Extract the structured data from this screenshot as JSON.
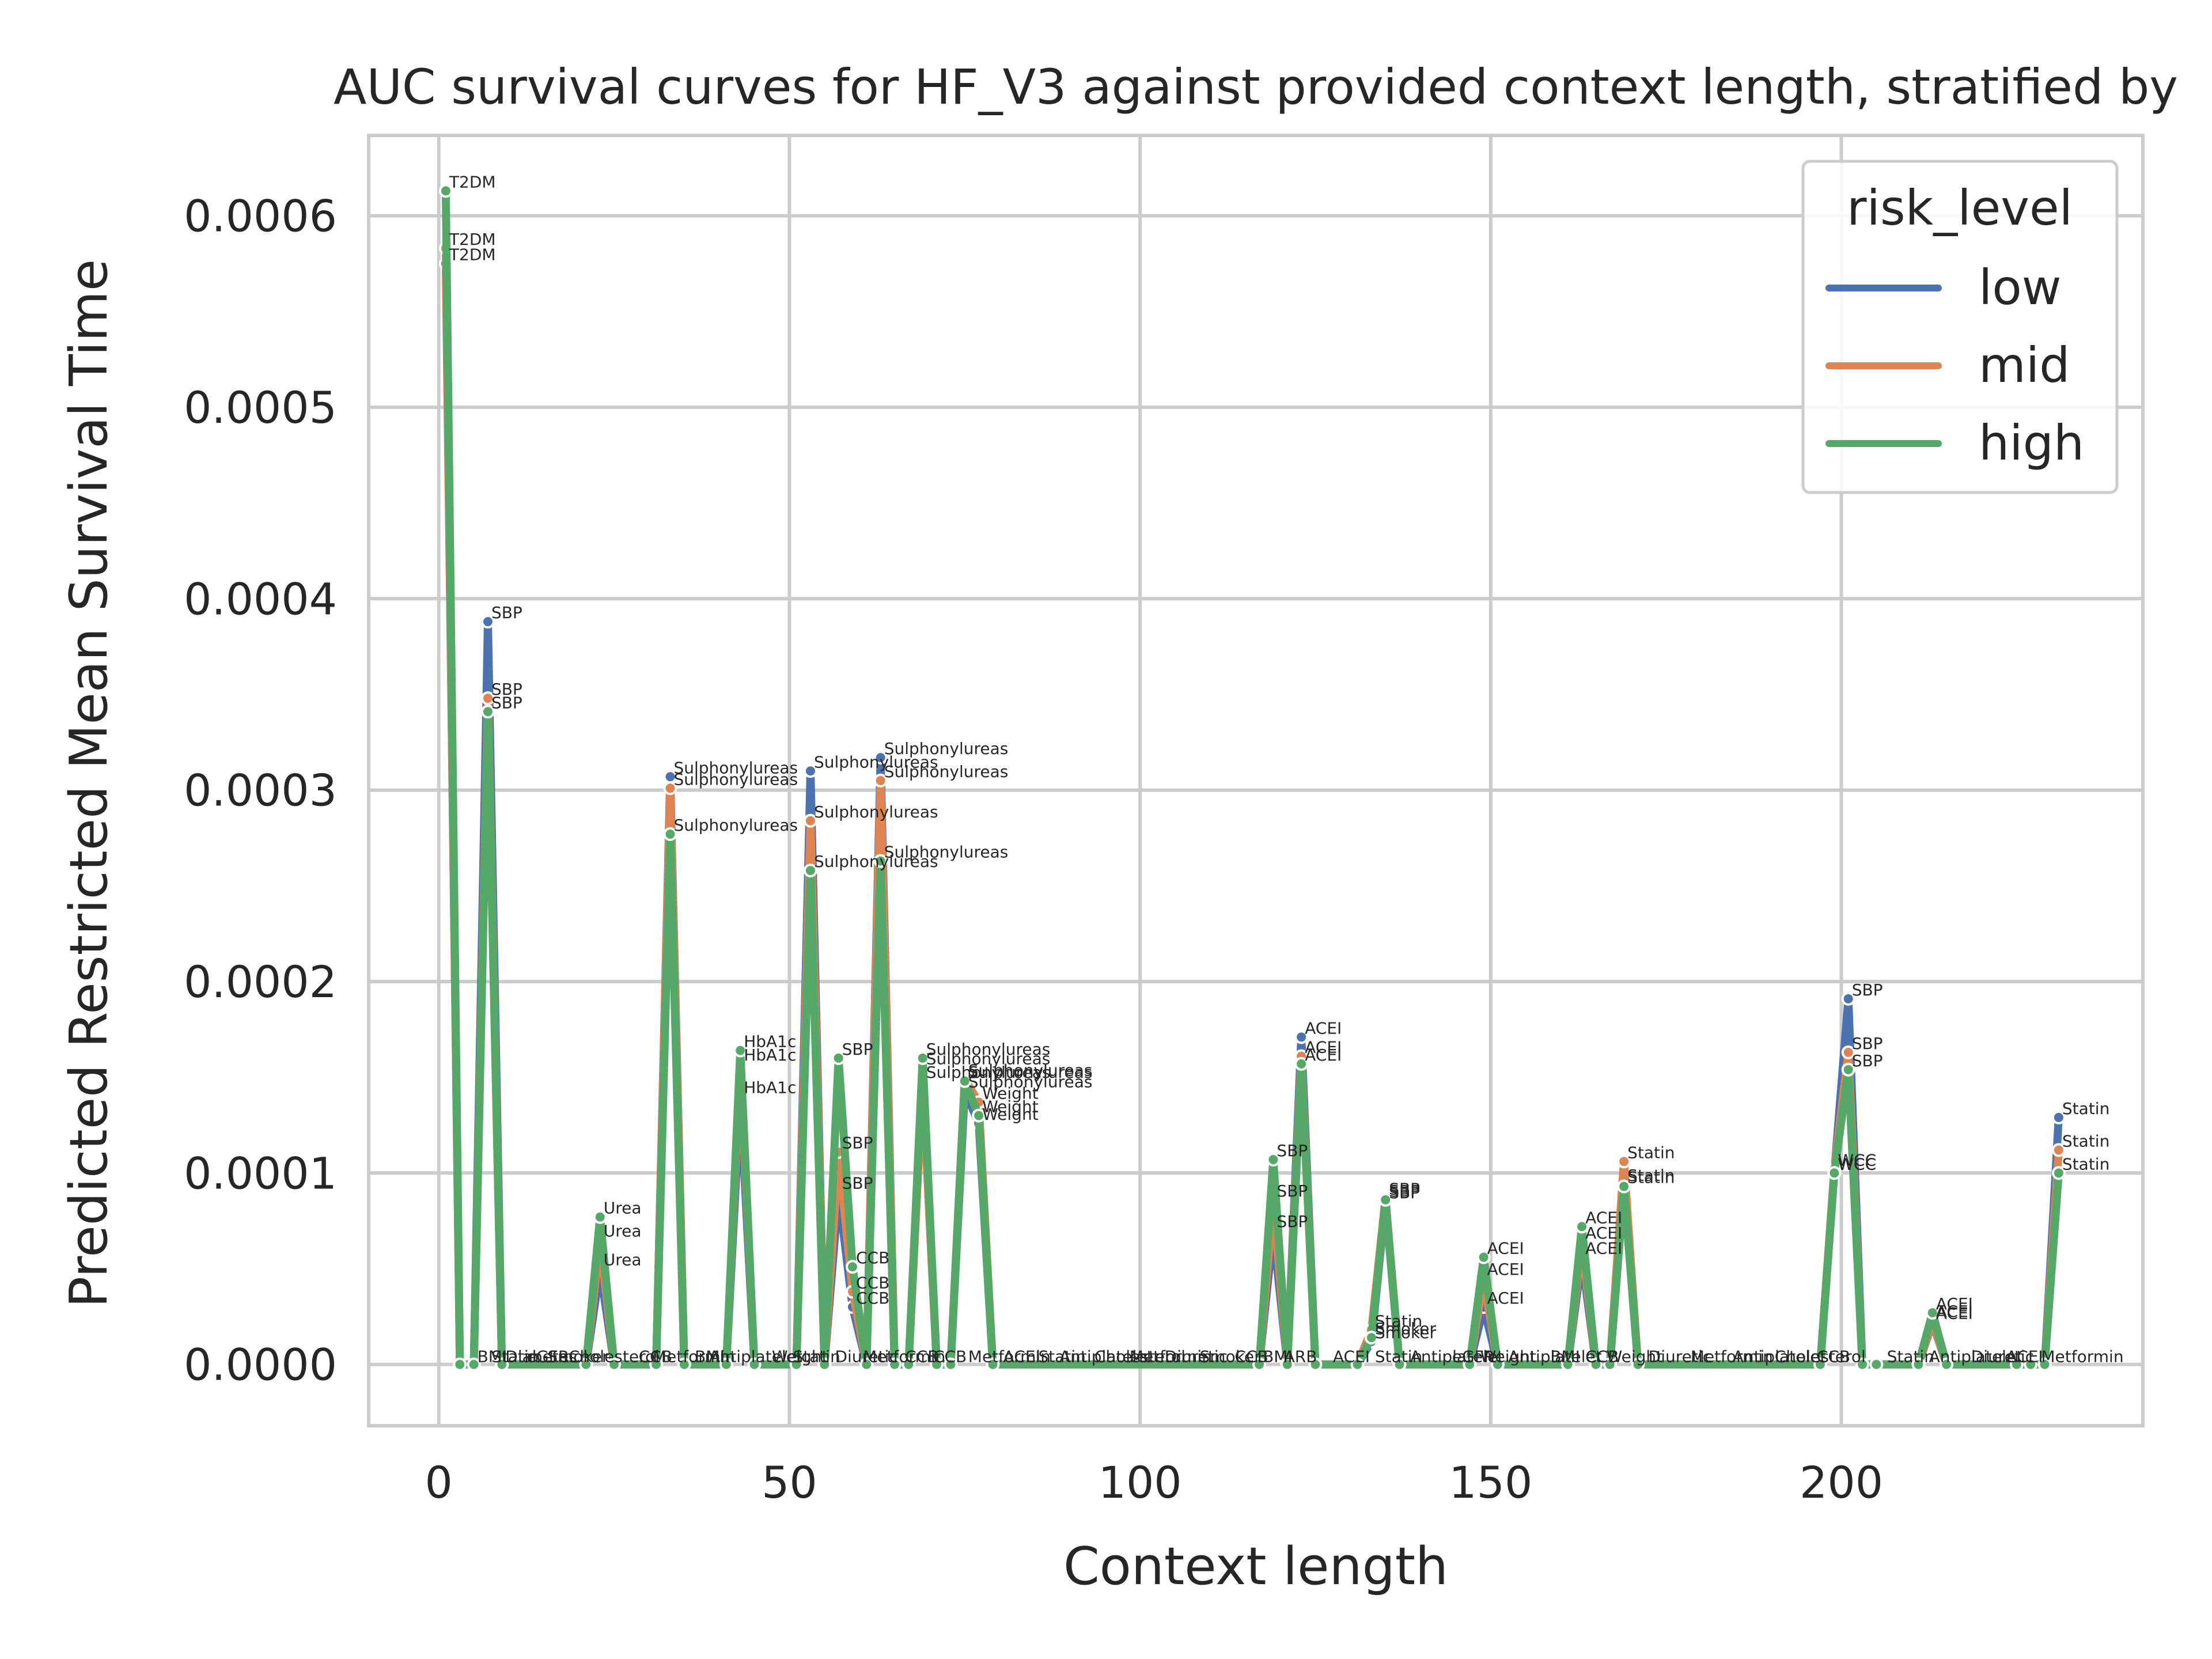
{
  "chart_data": {
    "type": "line",
    "title": "AUC survival curves for HF_V3 against provided context length, stratified by",
    "xlabel": "Context length",
    "ylabel": "Predicted Restricted Mean Survival Time",
    "xlim": [
      -10,
      243
    ],
    "ylim": [
      -3.2e-05,
      0.000642
    ],
    "xticks": [
      0,
      50,
      100,
      150,
      200
    ],
    "xtick_labels": [
      "0",
      "50",
      "100",
      "150",
      "200"
    ],
    "yticks": [
      0,
      0.0001,
      0.0002,
      0.0003,
      0.0004,
      0.0005,
      0.0006
    ],
    "ytick_labels": [
      "0.0000",
      "0.0001",
      "0.0002",
      "0.0003",
      "0.0004",
      "0.0005",
      "0.0006"
    ],
    "grid": true,
    "legend": {
      "title": "risk_level",
      "position": "top-right"
    },
    "series": [
      {
        "name": "low",
        "color": "#4c72b0",
        "x": [
          1,
          3,
          5,
          7,
          9,
          21,
          23,
          25,
          31,
          33,
          35,
          41,
          43,
          45,
          51,
          53,
          55,
          57,
          59,
          61,
          63,
          65,
          67,
          69,
          71,
          73,
          75,
          77,
          79,
          117,
          119,
          121,
          123,
          125,
          131,
          133,
          135,
          137,
          147,
          149,
          151,
          161,
          163,
          165,
          167,
          169,
          171,
          197,
          199,
          201,
          203,
          205,
          211,
          213,
          215,
          225,
          227,
          229,
          231
        ],
        "y": [
          0.000575,
          0.0,
          0.0,
          0.000388,
          0.0,
          0.0,
          5e-05,
          0.0,
          0.0,
          0.000307,
          0.0,
          0.0,
          0.00014,
          0.0,
          0.0,
          0.00031,
          0.0,
          9e-05,
          3e-05,
          0.0,
          0.000317,
          0.0,
          0.0,
          0.000155,
          0.0,
          0.0,
          0.000143,
          0.000126,
          0.0,
          0.0,
          7e-05,
          0.0,
          0.000171,
          0.0,
          0.0,
          1.2e-05,
          8.5e-05,
          0.0,
          0.0,
          3e-05,
          0.0,
          0.0,
          5.6e-05,
          0.0,
          0.0,
          9.4e-05,
          0.0,
          0.0,
          0.0001,
          0.000191,
          0.0,
          0.0,
          0.0,
          2.2e-05,
          0.0,
          0.0,
          0.0,
          0.0,
          0.000129
        ],
        "labels": [
          {
            "i": 0,
            "text": "T2DM"
          },
          {
            "i": 3,
            "text": "SBP"
          },
          {
            "i": 6,
            "text": "Urea"
          },
          {
            "i": 9,
            "text": "Sulphonylureas"
          },
          {
            "i": 12,
            "text": "HbA1c"
          },
          {
            "i": 15,
            "text": "Sulphonylureas"
          },
          {
            "i": 17,
            "text": "SBP"
          },
          {
            "i": 18,
            "text": "CCB"
          },
          {
            "i": 20,
            "text": "Sulphonylureas"
          },
          {
            "i": 23,
            "text": "Sulphonylureas"
          },
          {
            "i": 26,
            "text": "Sulphonylureas"
          },
          {
            "i": 27,
            "text": "Weight"
          },
          {
            "i": 30,
            "text": "SBP"
          },
          {
            "i": 32,
            "text": "ACEI"
          },
          {
            "i": 35,
            "text": "Smoker"
          },
          {
            "i": 36,
            "text": "SBP"
          },
          {
            "i": 39,
            "text": "ACEI"
          },
          {
            "i": 42,
            "text": "ACEI"
          },
          {
            "i": 45,
            "text": "Statin"
          },
          {
            "i": 48,
            "text": "WCC"
          },
          {
            "i": 49,
            "text": "SBP"
          },
          {
            "i": 53,
            "text": "ACEI"
          },
          {
            "i": 58,
            "text": "Statin"
          }
        ]
      },
      {
        "name": "mid",
        "color": "#dd8452",
        "x": [
          1,
          3,
          5,
          7,
          9,
          21,
          23,
          25,
          31,
          33,
          35,
          41,
          43,
          45,
          51,
          53,
          55,
          57,
          59,
          61,
          63,
          65,
          67,
          69,
          71,
          73,
          75,
          77,
          79,
          117,
          119,
          121,
          123,
          125,
          131,
          133,
          135,
          137,
          147,
          149,
          151,
          161,
          163,
          165,
          167,
          169,
          171,
          197,
          199,
          201,
          203,
          205,
          211,
          213,
          215,
          225,
          227,
          229,
          231
        ],
        "y": [
          0.000583,
          0.0,
          0.0,
          0.000348,
          0.0,
          0.0,
          6.5e-05,
          0.0,
          0.0,
          0.000301,
          0.0,
          0.0,
          0.000157,
          0.0,
          0.0,
          0.000284,
          0.0,
          0.000111,
          3.8e-05,
          0.0,
          0.000305,
          0.0,
          0.0,
          0.000148,
          0.0,
          0.0,
          0.000149,
          0.000137,
          0.0,
          0.0,
          8.6e-05,
          0.0,
          0.000161,
          0.0,
          0.0,
          1.8e-05,
          8.7e-05,
          0.0,
          0.0,
          4.5e-05,
          0.0,
          0.0,
          6.4e-05,
          0.0,
          0.0,
          0.000106,
          0.0,
          0.0,
          0.000102,
          0.000163,
          0.0,
          0.0,
          0.0,
          2.3e-05,
          0.0,
          0.0,
          0.0,
          0.0,
          0.000112
        ],
        "labels": [
          {
            "i": 0,
            "text": "T2DM"
          },
          {
            "i": 3,
            "text": "SBP"
          },
          {
            "i": 6,
            "text": "Urea"
          },
          {
            "i": 9,
            "text": "Sulphonylureas"
          },
          {
            "i": 12,
            "text": "HbA1c"
          },
          {
            "i": 15,
            "text": "Sulphonylureas"
          },
          {
            "i": 17,
            "text": "SBP"
          },
          {
            "i": 18,
            "text": "CCB"
          },
          {
            "i": 20,
            "text": "Sulphonylureas"
          },
          {
            "i": 23,
            "text": "Sulphonylureas"
          },
          {
            "i": 26,
            "text": "Sulphonylureas"
          },
          {
            "i": 27,
            "text": "Weight"
          },
          {
            "i": 30,
            "text": "SBP"
          },
          {
            "i": 32,
            "text": "ACEI"
          },
          {
            "i": 35,
            "text": "Statin"
          },
          {
            "i": 36,
            "text": "SBP"
          },
          {
            "i": 39,
            "text": "ACEI"
          },
          {
            "i": 42,
            "text": "ACEI"
          },
          {
            "i": 45,
            "text": "Statin"
          },
          {
            "i": 48,
            "text": "WCC"
          },
          {
            "i": 49,
            "text": "SBP"
          },
          {
            "i": 53,
            "text": "ACEI"
          },
          {
            "i": 58,
            "text": "Statin"
          }
        ]
      },
      {
        "name": "high",
        "color": "#55a868",
        "x": [
          1,
          3,
          5,
          7,
          9,
          21,
          23,
          25,
          31,
          33,
          35,
          41,
          43,
          45,
          51,
          53,
          55,
          57,
          59,
          61,
          63,
          65,
          67,
          69,
          71,
          73,
          75,
          77,
          79,
          117,
          119,
          121,
          123,
          125,
          131,
          133,
          135,
          137,
          147,
          149,
          151,
          161,
          163,
          165,
          167,
          169,
          171,
          197,
          199,
          201,
          203,
          205,
          211,
          213,
          215,
          225,
          227,
          229,
          231
        ],
        "y": [
          0.000613,
          0.0,
          0.0,
          0.000341,
          0.0,
          0.0,
          7.7e-05,
          0.0,
          0.0,
          0.000277,
          0.0,
          0.0,
          0.000164,
          0.0,
          0.0,
          0.000258,
          0.0,
          0.00016,
          5.1e-05,
          0.0,
          0.000263,
          0.0,
          0.0,
          0.00016,
          0.0,
          0.0,
          0.000148,
          0.00013,
          0.0,
          0.0,
          0.000107,
          0.0,
          0.000157,
          0.0,
          0.0,
          1.4e-05,
          8.6e-05,
          0.0,
          0.0,
          5.6e-05,
          0.0,
          0.0,
          7.2e-05,
          0.0,
          0.0,
          9.3e-05,
          0.0,
          0.0,
          0.0001,
          0.000154,
          0.0,
          0.0,
          0.0,
          2.7e-05,
          0.0,
          0.0,
          0.0,
          0.0,
          0.0001
        ],
        "labels": [
          {
            "i": 0,
            "text": "T2DM"
          },
          {
            "i": 3,
            "text": "SBP"
          },
          {
            "i": 6,
            "text": "Urea"
          },
          {
            "i": 9,
            "text": "Sulphonylureas"
          },
          {
            "i": 12,
            "text": "HbA1c"
          },
          {
            "i": 15,
            "text": "Sulphonylureas"
          },
          {
            "i": 17,
            "text": "SBP"
          },
          {
            "i": 18,
            "text": "CCB"
          },
          {
            "i": 20,
            "text": "Sulphonylureas"
          },
          {
            "i": 23,
            "text": "Sulphonylureas"
          },
          {
            "i": 26,
            "text": "Sulphonylureas"
          },
          {
            "i": 27,
            "text": "Weight"
          },
          {
            "i": 30,
            "text": "SBP"
          },
          {
            "i": 32,
            "text": "ACEI"
          },
          {
            "i": 35,
            "text": "Smoker"
          },
          {
            "i": 36,
            "text": "SBP"
          },
          {
            "i": 39,
            "text": "ACEI"
          },
          {
            "i": 42,
            "text": "ACEI"
          },
          {
            "i": 45,
            "text": "Statin"
          },
          {
            "i": 48,
            "text": "WCC"
          },
          {
            "i": 49,
            "text": "SBP"
          },
          {
            "i": 53,
            "text": "ACEI"
          },
          {
            "i": 58,
            "text": "Statin"
          }
        ]
      }
    ],
    "baseline_annotations": [
      {
        "x": 5,
        "text": "BMI"
      },
      {
        "x": 7,
        "text": "Statin"
      },
      {
        "x": 9,
        "text": "Diabetes"
      },
      {
        "x": 12,
        "text": "eGFR"
      },
      {
        "x": 15,
        "text": "Smoker"
      },
      {
        "x": 18,
        "text": "Cholesterol"
      },
      {
        "x": 28,
        "text": "CCB"
      },
      {
        "x": 30,
        "text": "Metformin"
      },
      {
        "x": 36,
        "text": "BMI"
      },
      {
        "x": 38,
        "text": "Antiplatelet"
      },
      {
        "x": 47,
        "text": "Weight"
      },
      {
        "x": 50,
        "text": "Statin"
      },
      {
        "x": 56,
        "text": "Diuretic"
      },
      {
        "x": 60,
        "text": "Metformin"
      },
      {
        "x": 66,
        "text": "CCB"
      },
      {
        "x": 70,
        "text": "CCB"
      },
      {
        "x": 75,
        "text": "Metformin"
      },
      {
        "x": 80,
        "text": "ACEI"
      },
      {
        "x": 85,
        "text": "Statin"
      },
      {
        "x": 88,
        "text": "Antiplatelet"
      },
      {
        "x": 93,
        "text": "Cholesterol"
      },
      {
        "x": 98,
        "text": "Metformin"
      },
      {
        "x": 103,
        "text": "Diuretic"
      },
      {
        "x": 108,
        "text": "Smoker"
      },
      {
        "x": 113,
        "text": "CCB"
      },
      {
        "x": 117,
        "text": "BMI"
      },
      {
        "x": 120,
        "text": "ARB"
      },
      {
        "x": 127,
        "text": "ACEI"
      },
      {
        "x": 133,
        "text": "Statin"
      },
      {
        "x": 138,
        "text": "Antiplatelet"
      },
      {
        "x": 144,
        "text": "eGFR"
      },
      {
        "x": 148,
        "text": "Weight"
      },
      {
        "x": 152,
        "text": "Antiplatelet"
      },
      {
        "x": 158,
        "text": "BMI"
      },
      {
        "x": 163,
        "text": "CCB"
      },
      {
        "x": 166,
        "text": "Weight"
      },
      {
        "x": 172,
        "text": "Diuretic"
      },
      {
        "x": 178,
        "text": "Metformin"
      },
      {
        "x": 184,
        "text": "Antiplatelet"
      },
      {
        "x": 190,
        "text": "Cholesterol"
      },
      {
        "x": 196,
        "text": "CCB"
      },
      {
        "x": 206,
        "text": "Statin"
      },
      {
        "x": 212,
        "text": "Antiplatelet"
      },
      {
        "x": 218,
        "text": "Diuretic"
      },
      {
        "x": 223,
        "text": "ACEI"
      },
      {
        "x": 228,
        "text": "Metformin"
      }
    ]
  }
}
